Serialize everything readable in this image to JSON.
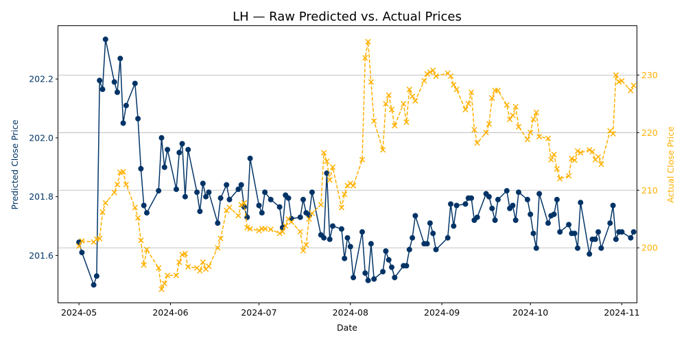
{
  "chart_data": {
    "type": "line",
    "title": "LH — Raw Predicted vs. Actual Prices",
    "xlabel": "Date",
    "ylabel_left": "Predicted Close Price",
    "ylabel_right": "Actual Close Price",
    "xlim": [
      "2024-04-24",
      "2024-11-06"
    ],
    "ylim_left": [
      201.44,
      202.38
    ],
    "ylim_right": [
      190.5,
      238.5
    ],
    "x_ticks": [
      "2024-05",
      "2024-06",
      "2024-07",
      "2024-08",
      "2024-09",
      "2024-10",
      "2024-11"
    ],
    "y_ticks_left": [
      "201.6",
      "201.8",
      "202.0",
      "202.2"
    ],
    "y_ticks_right": [
      "200",
      "210",
      "220",
      "230"
    ],
    "grid": "horizontal lines at right-axis ticks",
    "colors": {
      "predicted": "#003366",
      "actual": "#FFB000",
      "axes": "#000000",
      "grid": "#b0b0b0"
    },
    "series": [
      {
        "axis": "left",
        "style": "solid line, circle markers",
        "points": [
          [
            "2024-05-01",
            201.645
          ],
          [
            "2024-05-02",
            201.61
          ],
          [
            "2024-05-06",
            201.5
          ],
          [
            "2024-05-07",
            201.53
          ],
          [
            "2024-05-08",
            202.195
          ],
          [
            "2024-05-09",
            202.165
          ],
          [
            "2024-05-10",
            202.335
          ],
          [
            "2024-05-13",
            202.19
          ],
          [
            "2024-05-14",
            202.155
          ],
          [
            "2024-05-15",
            202.27
          ],
          [
            "2024-05-16",
            202.05
          ],
          [
            "2024-05-17",
            202.11
          ],
          [
            "2024-05-20",
            202.185
          ],
          [
            "2024-05-21",
            202.065
          ],
          [
            "2024-05-22",
            201.895
          ],
          [
            "2024-05-23",
            201.77
          ],
          [
            "2024-05-24",
            201.745
          ],
          [
            "2024-05-28",
            201.82
          ],
          [
            "2024-05-29",
            202.0
          ],
          [
            "2024-05-30",
            201.9
          ],
          [
            "2024-05-31",
            201.96
          ],
          [
            "2024-06-03",
            201.825
          ],
          [
            "2024-06-04",
            201.95
          ],
          [
            "2024-06-05",
            201.98
          ],
          [
            "2024-06-06",
            201.8
          ],
          [
            "2024-06-07",
            201.96
          ],
          [
            "2024-06-10",
            201.815
          ],
          [
            "2024-06-11",
            201.75
          ],
          [
            "2024-06-12",
            201.845
          ],
          [
            "2024-06-13",
            201.8
          ],
          [
            "2024-06-14",
            201.815
          ],
          [
            "2024-06-17",
            201.71
          ],
          [
            "2024-06-18",
            201.795
          ],
          [
            "2024-06-20",
            201.84
          ],
          [
            "2024-06-21",
            201.79
          ],
          [
            "2024-06-24",
            201.825
          ],
          [
            "2024-06-25",
            201.84
          ],
          [
            "2024-06-26",
            201.765
          ],
          [
            "2024-06-27",
            201.73
          ],
          [
            "2024-06-28",
            201.93
          ],
          [
            "2024-07-01",
            201.77
          ],
          [
            "2024-07-02",
            201.745
          ],
          [
            "2024-07-03",
            201.815
          ],
          [
            "2024-07-05",
            201.79
          ],
          [
            "2024-07-08",
            201.765
          ],
          [
            "2024-07-09",
            201.695
          ],
          [
            "2024-07-10",
            201.805
          ],
          [
            "2024-07-11",
            201.795
          ],
          [
            "2024-07-12",
            201.725
          ],
          [
            "2024-07-15",
            201.73
          ],
          [
            "2024-07-16",
            201.79
          ],
          [
            "2024-07-17",
            201.745
          ],
          [
            "2024-07-18",
            201.735
          ],
          [
            "2024-07-19",
            201.815
          ],
          [
            "2024-07-22",
            201.67
          ],
          [
            "2024-07-23",
            201.66
          ],
          [
            "2024-07-24",
            201.88
          ],
          [
            "2024-07-25",
            201.655
          ],
          [
            "2024-07-26",
            201.7
          ],
          [
            "2024-07-29",
            201.69
          ],
          [
            "2024-07-30",
            201.59
          ],
          [
            "2024-07-31",
            201.66
          ],
          [
            "2024-08-01",
            201.63
          ],
          [
            "2024-08-02",
            201.525
          ],
          [
            "2024-08-05",
            201.68
          ],
          [
            "2024-08-06",
            201.54
          ],
          [
            "2024-08-07",
            201.515
          ],
          [
            "2024-08-08",
            201.64
          ],
          [
            "2024-08-09",
            201.52
          ],
          [
            "2024-08-12",
            201.545
          ],
          [
            "2024-08-13",
            201.615
          ],
          [
            "2024-08-14",
            201.585
          ],
          [
            "2024-08-15",
            201.56
          ],
          [
            "2024-08-16",
            201.525
          ],
          [
            "2024-08-19",
            201.565
          ],
          [
            "2024-08-20",
            201.565
          ],
          [
            "2024-08-21",
            201.62
          ],
          [
            "2024-08-22",
            201.66
          ],
          [
            "2024-08-23",
            201.735
          ],
          [
            "2024-08-26",
            201.64
          ],
          [
            "2024-08-27",
            201.64
          ],
          [
            "2024-08-28",
            201.71
          ],
          [
            "2024-08-29",
            201.675
          ],
          [
            "2024-08-30",
            201.62
          ],
          [
            "2024-09-03",
            201.66
          ],
          [
            "2024-09-04",
            201.775
          ],
          [
            "2024-09-05",
            201.7
          ],
          [
            "2024-09-06",
            201.77
          ],
          [
            "2024-09-09",
            201.775
          ],
          [
            "2024-09-10",
            201.795
          ],
          [
            "2024-09-11",
            201.795
          ],
          [
            "2024-09-12",
            201.72
          ],
          [
            "2024-09-13",
            201.73
          ],
          [
            "2024-09-16",
            201.81
          ],
          [
            "2024-09-17",
            201.8
          ],
          [
            "2024-09-18",
            201.76
          ],
          [
            "2024-09-19",
            201.72
          ],
          [
            "2024-09-20",
            201.79
          ],
          [
            "2024-09-23",
            201.82
          ],
          [
            "2024-09-24",
            201.76
          ],
          [
            "2024-09-25",
            201.77
          ],
          [
            "2024-09-26",
            201.72
          ],
          [
            "2024-09-27",
            201.815
          ],
          [
            "2024-09-30",
            201.79
          ],
          [
            "2024-10-01",
            201.74
          ],
          [
            "2024-10-02",
            201.675
          ],
          [
            "2024-10-03",
            201.625
          ],
          [
            "2024-10-04",
            201.81
          ],
          [
            "2024-10-07",
            201.71
          ],
          [
            "2024-10-08",
            201.735
          ],
          [
            "2024-10-09",
            201.74
          ],
          [
            "2024-10-10",
            201.79
          ],
          [
            "2024-10-11",
            201.68
          ],
          [
            "2024-10-14",
            201.705
          ],
          [
            "2024-10-15",
            201.675
          ],
          [
            "2024-10-16",
            201.675
          ],
          [
            "2024-10-17",
            201.625
          ],
          [
            "2024-10-18",
            201.78
          ],
          [
            "2024-10-21",
            201.605
          ],
          [
            "2024-10-22",
            201.655
          ],
          [
            "2024-10-23",
            201.655
          ],
          [
            "2024-10-24",
            201.68
          ],
          [
            "2024-10-25",
            201.625
          ],
          [
            "2024-10-28",
            201.71
          ],
          [
            "2024-10-29",
            201.77
          ],
          [
            "2024-10-30",
            201.655
          ],
          [
            "2024-10-31",
            201.68
          ],
          [
            "2024-11-01",
            201.68
          ],
          [
            "2024-11-04",
            201.66
          ],
          [
            "2024-11-05",
            201.68
          ]
        ]
      },
      {
        "axis": "right",
        "style": "dashed line, x markers",
        "points": [
          [
            "2024-05-01",
            200.3
          ],
          [
            "2024-05-02",
            201.2
          ],
          [
            "2024-05-06",
            201.0
          ],
          [
            "2024-05-07",
            201.5
          ],
          [
            "2024-05-08",
            201.6
          ],
          [
            "2024-05-09",
            206.2
          ],
          [
            "2024-05-10",
            207.8
          ],
          [
            "2024-05-13",
            209.6
          ],
          [
            "2024-05-14",
            211.0
          ],
          [
            "2024-05-15",
            213.1
          ],
          [
            "2024-05-16",
            213.2
          ],
          [
            "2024-05-17",
            211.0
          ],
          [
            "2024-05-20",
            207.0
          ],
          [
            "2024-05-21",
            205.2
          ],
          [
            "2024-05-22",
            201.3
          ],
          [
            "2024-05-23",
            197.0
          ],
          [
            "2024-05-24",
            199.7
          ],
          [
            "2024-05-28",
            196.5
          ],
          [
            "2024-05-29",
            192.8
          ],
          [
            "2024-05-30",
            193.8
          ],
          [
            "2024-05-31",
            195.2
          ],
          [
            "2024-06-03",
            195.2
          ],
          [
            "2024-06-04",
            197.5
          ],
          [
            "2024-06-05",
            198.8
          ],
          [
            "2024-06-06",
            199.0
          ],
          [
            "2024-06-07",
            196.7
          ],
          [
            "2024-06-10",
            196.5
          ],
          [
            "2024-06-11",
            196.0
          ],
          [
            "2024-06-12",
            197.5
          ],
          [
            "2024-06-13",
            196.3
          ],
          [
            "2024-06-14",
            196.8
          ],
          [
            "2024-06-17",
            200.0
          ],
          [
            "2024-06-18",
            201.6
          ],
          [
            "2024-06-20",
            206.5
          ],
          [
            "2024-06-21",
            207.0
          ],
          [
            "2024-06-24",
            205.6
          ],
          [
            "2024-06-25",
            207.5
          ],
          [
            "2024-06-26",
            207.8
          ],
          [
            "2024-06-27",
            203.5
          ],
          [
            "2024-06-28",
            203.3
          ],
          [
            "2024-07-01",
            203.0
          ],
          [
            "2024-07-02",
            203.3
          ],
          [
            "2024-07-03",
            203.3
          ],
          [
            "2024-07-05",
            203.2
          ],
          [
            "2024-07-08",
            202.5
          ],
          [
            "2024-07-09",
            202.8
          ],
          [
            "2024-07-10",
            203.8
          ],
          [
            "2024-07-11",
            205.0
          ],
          [
            "2024-07-12",
            204.5
          ],
          [
            "2024-07-15",
            202.8
          ],
          [
            "2024-07-16",
            199.5
          ],
          [
            "2024-07-17",
            200.5
          ],
          [
            "2024-07-18",
            205.0
          ],
          [
            "2024-07-19",
            206.0
          ],
          [
            "2024-07-22",
            207.5
          ],
          [
            "2024-07-23",
            216.5
          ],
          [
            "2024-07-24",
            215.0
          ],
          [
            "2024-07-25",
            211.8
          ],
          [
            "2024-07-26",
            214.0
          ],
          [
            "2024-07-29",
            207.0
          ],
          [
            "2024-07-30",
            209.3
          ],
          [
            "2024-07-31",
            210.8
          ],
          [
            "2024-08-01",
            211.2
          ],
          [
            "2024-08-02",
            210.8
          ],
          [
            "2024-08-05",
            215.3
          ],
          [
            "2024-08-06",
            233.0
          ],
          [
            "2024-08-07",
            235.8
          ],
          [
            "2024-08-08",
            228.8
          ],
          [
            "2024-08-09",
            222.0
          ],
          [
            "2024-08-12",
            217.0
          ],
          [
            "2024-08-13",
            225.0
          ],
          [
            "2024-08-14",
            226.5
          ],
          [
            "2024-08-15",
            224.0
          ],
          [
            "2024-08-16",
            221.2
          ],
          [
            "2024-08-19",
            225.0
          ],
          [
            "2024-08-20",
            221.8
          ],
          [
            "2024-08-21",
            227.5
          ],
          [
            "2024-08-22",
            226.3
          ],
          [
            "2024-08-23",
            225.5
          ],
          [
            "2024-08-26",
            229.0
          ],
          [
            "2024-08-27",
            230.2
          ],
          [
            "2024-08-28",
            230.5
          ],
          [
            "2024-08-29",
            230.8
          ],
          [
            "2024-08-30",
            229.8
          ],
          [
            "2024-09-03",
            230.3
          ],
          [
            "2024-09-04",
            229.8
          ],
          [
            "2024-09-05",
            228.3
          ],
          [
            "2024-09-06",
            227.5
          ],
          [
            "2024-09-09",
            224.0
          ],
          [
            "2024-09-10",
            225.0
          ],
          [
            "2024-09-11",
            227.0
          ],
          [
            "2024-09-12",
            220.5
          ],
          [
            "2024-09-13",
            218.2
          ],
          [
            "2024-09-16",
            220.0
          ],
          [
            "2024-09-17",
            221.5
          ],
          [
            "2024-09-18",
            226.0
          ],
          [
            "2024-09-19",
            227.3
          ],
          [
            "2024-09-20",
            227.3
          ],
          [
            "2024-09-23",
            224.8
          ],
          [
            "2024-09-24",
            222.3
          ],
          [
            "2024-09-25",
            223.0
          ],
          [
            "2024-09-26",
            224.5
          ],
          [
            "2024-09-27",
            221.0
          ],
          [
            "2024-09-30",
            218.8
          ],
          [
            "2024-10-01",
            220.0
          ],
          [
            "2024-10-02",
            222.3
          ],
          [
            "2024-10-03",
            223.5
          ],
          [
            "2024-10-04",
            219.3
          ],
          [
            "2024-10-07",
            219.0
          ],
          [
            "2024-10-08",
            215.3
          ],
          [
            "2024-10-09",
            216.2
          ],
          [
            "2024-10-10",
            213.7
          ],
          [
            "2024-10-11",
            212.0
          ],
          [
            "2024-10-14",
            212.5
          ],
          [
            "2024-10-15",
            215.5
          ],
          [
            "2024-10-16",
            215.2
          ],
          [
            "2024-10-17",
            216.8
          ],
          [
            "2024-10-18",
            216.5
          ],
          [
            "2024-10-21",
            217.0
          ],
          [
            "2024-10-22",
            216.7
          ],
          [
            "2024-10-23",
            215.3
          ],
          [
            "2024-10-24",
            215.8
          ],
          [
            "2024-10-25",
            214.5
          ],
          [
            "2024-10-28",
            220.3
          ],
          [
            "2024-10-29",
            219.8
          ],
          [
            "2024-10-30",
            230.0
          ],
          [
            "2024-10-31",
            228.8
          ],
          [
            "2024-11-01",
            229.0
          ],
          [
            "2024-11-04",
            227.3
          ],
          [
            "2024-11-05",
            228.2
          ]
        ]
      }
    ]
  }
}
